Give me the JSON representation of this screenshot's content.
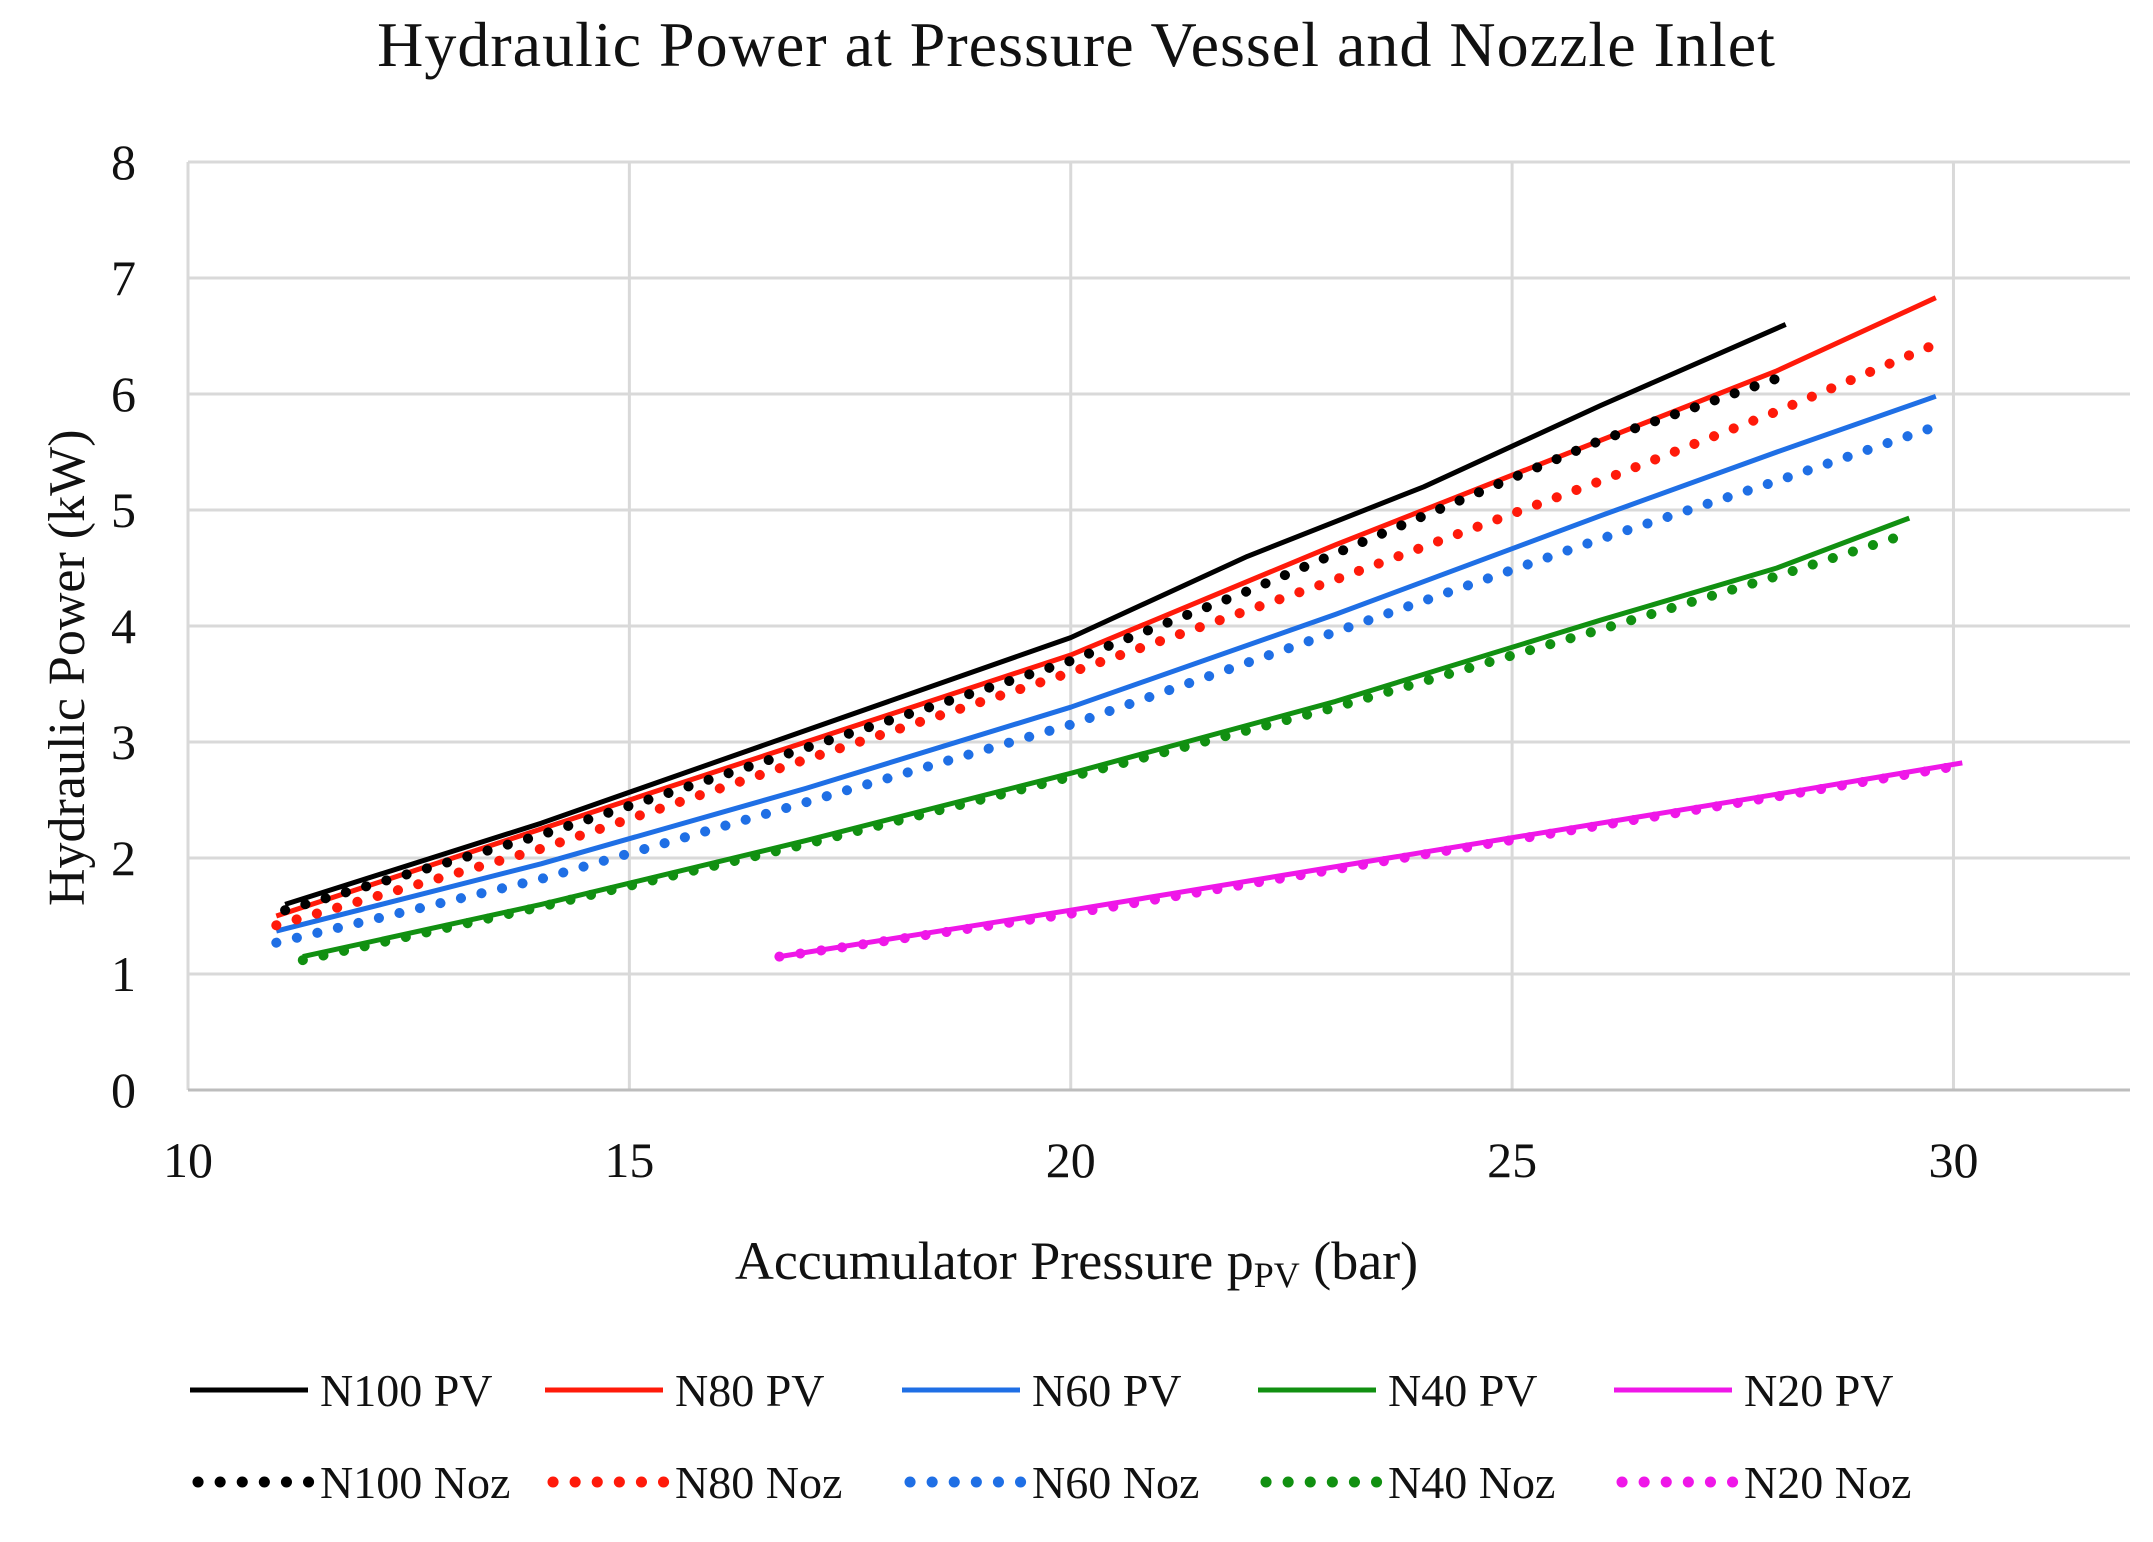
{
  "chart_data": {
    "type": "line",
    "title": "Hydraulic Power at Pressure Vessel and Nozzle Inlet",
    "xlabel": "Accumulator Pressure",
    "xlabel_sym": "p",
    "xlabel_sub": "PV",
    "xlabel_unit": "(bar)",
    "ylabel": "Hydraulic Power (kW)",
    "xlim": [
      10,
      32
    ],
    "ylim": [
      0,
      8
    ],
    "xticks": [
      10,
      15,
      20,
      25,
      30
    ],
    "yticks": [
      0,
      1,
      2,
      3,
      4,
      5,
      6,
      7,
      8
    ],
    "grid": true,
    "legend_position": "bottom",
    "series": [
      {
        "name": "N100 PV",
        "style": "solid",
        "color": "#000000",
        "x": [
          11.1,
          14,
          17,
          20,
          22,
          24,
          26,
          28.1
        ],
        "y": [
          1.6,
          2.3,
          3.1,
          3.9,
          4.6,
          5.2,
          5.9,
          6.6
        ]
      },
      {
        "name": "N80 PV",
        "style": "solid",
        "color": "#ff1a0a",
        "x": [
          11,
          14,
          17,
          20,
          23,
          26,
          28,
          29.8
        ],
        "y": [
          1.5,
          2.25,
          3.0,
          3.75,
          4.7,
          5.6,
          6.2,
          6.83
        ]
      },
      {
        "name": "N60 PV",
        "style": "solid",
        "color": "#1f6fe5",
        "x": [
          11,
          14,
          17,
          20,
          23,
          26,
          28,
          29.8
        ],
        "y": [
          1.37,
          1.95,
          2.6,
          3.3,
          4.1,
          4.95,
          5.5,
          5.98
        ]
      },
      {
        "name": "N40 PV",
        "style": "solid",
        "color": "#119011",
        "x": [
          11.3,
          14,
          17,
          20,
          23,
          26,
          28,
          29.5
        ],
        "y": [
          1.15,
          1.6,
          2.15,
          2.73,
          3.35,
          4.05,
          4.5,
          4.93
        ]
      },
      {
        "name": "N20 PV",
        "style": "solid",
        "color": "#ef17e8",
        "x": [
          16.7,
          20,
          24,
          28,
          30.1
        ],
        "y": [
          1.15,
          1.55,
          2.05,
          2.55,
          2.82
        ]
      },
      {
        "name": "N100 Noz",
        "style": "dotted",
        "color": "#000000",
        "x": [
          11.1,
          14,
          17,
          20,
          22,
          24,
          26,
          28.1
        ],
        "y": [
          1.55,
          2.2,
          2.95,
          3.7,
          4.3,
          4.95,
          5.6,
          6.16
        ]
      },
      {
        "name": "N80 Noz",
        "style": "dotted",
        "color": "#ff1a0a",
        "x": [
          11,
          14,
          17,
          20,
          23,
          26,
          28,
          29.8
        ],
        "y": [
          1.42,
          2.08,
          2.85,
          3.6,
          4.4,
          5.25,
          5.85,
          6.43
        ]
      },
      {
        "name": "N60 Noz",
        "style": "dotted",
        "color": "#1f6fe5",
        "x": [
          11,
          14,
          17,
          20,
          23,
          26,
          28,
          29.8
        ],
        "y": [
          1.27,
          1.82,
          2.48,
          3.15,
          3.95,
          4.75,
          5.25,
          5.72
        ]
      },
      {
        "name": "N40 Noz",
        "style": "dotted",
        "color": "#119011",
        "x": [
          11.3,
          14,
          17,
          20,
          23,
          26,
          28,
          29.5
        ],
        "y": [
          1.12,
          1.58,
          2.12,
          2.7,
          3.3,
          3.97,
          4.43,
          4.8
        ]
      },
      {
        "name": "N20 Noz",
        "style": "dotted",
        "color": "#ef17e8",
        "x": [
          16.7,
          20,
          24,
          28,
          30.1
        ],
        "y": [
          1.15,
          1.52,
          2.03,
          2.53,
          2.8
        ]
      }
    ]
  }
}
